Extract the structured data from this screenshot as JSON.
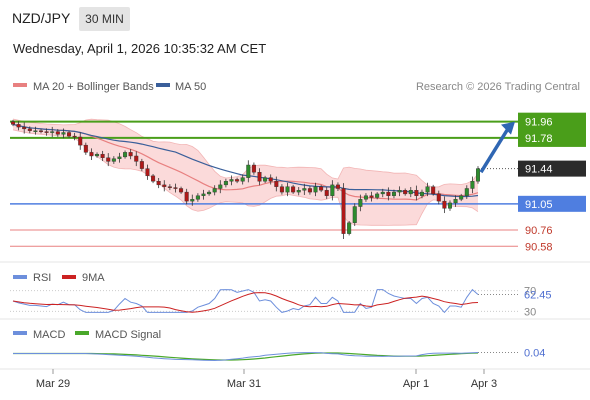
{
  "header": {
    "symbol": "NZD/JPY",
    "timeframe": "30 MIN",
    "datetime": "Wednesday, April 1, 2026 10:35:32 AM CET"
  },
  "legend": {
    "ma20_label": "MA 20 + Bollinger Bands",
    "ma50_label": "MA 50",
    "credit": "Research © 2026 Trading Central",
    "rsi_label": "RSI",
    "rsi_ma_label": "9MA",
    "macd_label": "MACD",
    "macd_signal_label": "MACD Signal"
  },
  "colors": {
    "candle_up": "#2e8b2e",
    "candle_down": "#b01818",
    "ma20": "#e88080",
    "ma50": "#3a5f9a",
    "bollinger_fill": "#fbdada",
    "resistance": "#4a9e1a",
    "support": "#4f7ee0",
    "target_line": "#e88080",
    "arrow": "#2f66b3",
    "rsi": "#6d8fdc",
    "rsi_ma": "#cc2222",
    "macd": "#6d8fdc",
    "macd_signal": "#4aa82a"
  },
  "chart_data": {
    "type": "candlestick",
    "x_ticks": [
      "Mar 29",
      "Mar 31",
      "Apr 1",
      "Apr 3"
    ],
    "levels": [
      {
        "value": 91.96,
        "kind": "resistance",
        "label": "91.96"
      },
      {
        "value": 91.78,
        "kind": "resistance",
        "label": "91.78"
      },
      {
        "value": 91.44,
        "kind": "last_price",
        "label": "91.44"
      },
      {
        "value": 91.05,
        "kind": "support",
        "label": "91.05"
      },
      {
        "value": 90.76,
        "kind": "target",
        "label": "90.76"
      },
      {
        "value": 90.58,
        "kind": "target",
        "label": "90.58"
      }
    ],
    "price_range": [
      90.45,
      92.2
    ],
    "forecast_arrow": {
      "from": 91.4,
      "to": 91.96
    },
    "closes": [
      91.93,
      91.9,
      91.88,
      91.86,
      91.86,
      91.85,
      91.84,
      91.85,
      91.82,
      91.84,
      91.8,
      91.79,
      91.7,
      91.62,
      91.58,
      91.6,
      91.56,
      91.52,
      91.55,
      91.57,
      91.62,
      91.58,
      91.52,
      91.44,
      91.36,
      91.3,
      91.26,
      91.24,
      91.23,
      91.22,
      91.18,
      91.08,
      91.1,
      91.14,
      91.16,
      91.18,
      91.22,
      91.26,
      91.3,
      91.32,
      91.3,
      91.34,
      91.48,
      91.4,
      91.3,
      91.34,
      91.3,
      91.24,
      91.18,
      91.24,
      91.18,
      91.2,
      91.22,
      91.18,
      91.24,
      91.2,
      91.14,
      91.26,
      91.22,
      90.72,
      90.84,
      91.02,
      91.1,
      91.14,
      91.12,
      91.16,
      91.18,
      91.14,
      91.18,
      91.2,
      91.16,
      91.2,
      91.14,
      91.18,
      91.24,
      91.16,
      91.08,
      91.0,
      91.06,
      91.1,
      91.14,
      91.22,
      91.3,
      91.44
    ],
    "rsi": {
      "value": 62.45,
      "ticks": [
        70,
        62.45,
        30
      ]
    },
    "macd": {
      "value": 0.04
    }
  }
}
